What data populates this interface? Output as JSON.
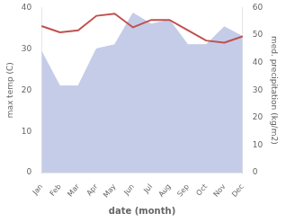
{
  "chart_data": {
    "type": "line",
    "categories": [
      "Jan",
      "Feb",
      "Mar",
      "Apr",
      "May",
      "Jun",
      "Jul",
      "Aug",
      "Sep",
      "Oct",
      "Nov",
      "Dec"
    ],
    "xlabel": "date (month)",
    "ylabel": "max temp (C)",
    "y2label": "med. precipitation (kg/m2)",
    "series": [
      {
        "type": "area",
        "axis": "y2",
        "color": "#c5cce8",
        "values": [
          44.0,
          31.5,
          31.5,
          45.0,
          46.5,
          58.0,
          54.0,
          55.5,
          46.5,
          46.5,
          53.0,
          49.5
        ]
      },
      {
        "type": "line",
        "color": "#c0504d",
        "values": [
          35.5,
          34.0,
          34.5,
          38.0,
          38.5,
          35.2,
          37.0,
          37.0,
          34.5,
          32.0,
          31.5,
          33.0
        ]
      }
    ],
    "ylim": [
      0,
      40
    ],
    "yticks": [
      0,
      10,
      20,
      30,
      40
    ],
    "y2lim": [
      0,
      60
    ],
    "y2ticks": [
      0,
      10,
      20,
      30,
      40,
      50,
      60
    ],
    "grid": false
  }
}
